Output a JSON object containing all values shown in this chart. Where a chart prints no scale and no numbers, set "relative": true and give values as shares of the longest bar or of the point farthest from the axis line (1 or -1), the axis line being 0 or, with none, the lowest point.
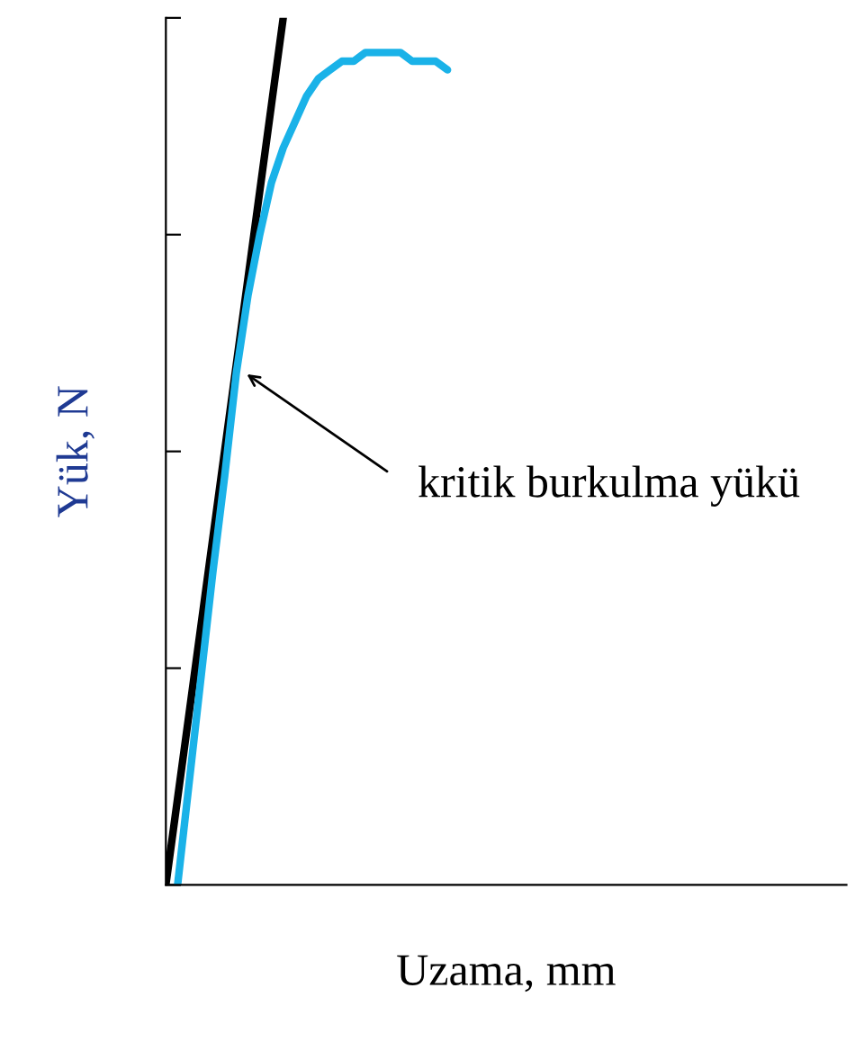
{
  "chart_data": {
    "type": "line",
    "relative": true,
    "xlabel": "Uzama, mm",
    "ylabel": "Yük, N",
    "categories": [
      null,
      null,
      null,
      null,
      null,
      null,
      null,
      null,
      null,
      null,
      null,
      null,
      null,
      null,
      null,
      null,
      null,
      null,
      null,
      null,
      null,
      null,
      null,
      null,
      null,
      null,
      null,
      null,
      null,
      null,
      null,
      null,
      null,
      null,
      null,
      null,
      null,
      null,
      null,
      null,
      null,
      null,
      null,
      null,
      null,
      null,
      null,
      null,
      null,
      null,
      null,
      null,
      null,
      null,
      null,
      null,
      null,
      null,
      null
    ],
    "series": [
      {
        "color": "#000000",
        "values": [
          0,
          0.1,
          0.2,
          0.3,
          0.4,
          0.5,
          0.6,
          0.7,
          0.8,
          0.9,
          1,
          null,
          null,
          null,
          null,
          null,
          null,
          null,
          null,
          null,
          null,
          null,
          null,
          null,
          null,
          null,
          null,
          null,
          null,
          null,
          null,
          null,
          null,
          null,
          null,
          null,
          null,
          null,
          null,
          null,
          null,
          null,
          null,
          null,
          null,
          null,
          null,
          null,
          null,
          null,
          null,
          null,
          null,
          null,
          null,
          null,
          null,
          null,
          null
        ]
      },
      {
        "color": "#1ab2e8",
        "values": [
          null,
          0,
          0.12,
          0.24,
          0.36,
          0.47,
          0.59,
          0.68,
          0.75,
          0.81,
          0.85,
          0.88,
          0.91,
          0.93,
          0.94,
          0.95,
          0.95,
          0.96,
          0.96,
          0.96,
          0.96,
          0.95,
          0.95,
          0.95,
          0.94,
          null,
          null,
          null,
          null,
          null,
          null,
          null,
          null,
          null,
          null,
          null,
          null,
          null,
          null,
          null,
          null,
          null,
          null,
          null,
          null,
          null,
          null,
          null,
          null,
          null,
          null,
          null,
          null,
          null,
          null,
          null,
          null,
          null,
          null
        ]
      }
    ],
    "annotations": [
      "kritik burkulma yükü"
    ],
    "grid": false,
    "legend": false,
    "marker": "none",
    "line_style": "solid"
  }
}
